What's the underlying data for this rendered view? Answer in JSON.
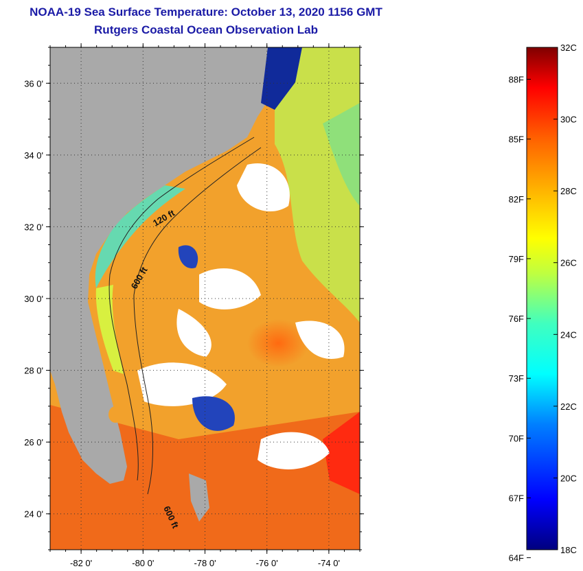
{
  "header": {
    "title": "NOAA-19 Sea Surface Temperature:  October 13, 2020 1156 GMT",
    "subtitle": "Rutgers Coastal Ocean Observation Lab"
  },
  "map": {
    "lat_ticks": [
      {
        "value": 36,
        "label": "36 0'"
      },
      {
        "value": 34,
        "label": "34 0'"
      },
      {
        "value": 32,
        "label": "32 0'"
      },
      {
        "value": 30,
        "label": "30 0'"
      },
      {
        "value": 28,
        "label": "28 0'"
      },
      {
        "value": 26,
        "label": "26 0'"
      },
      {
        "value": 24,
        "label": "24 0'"
      }
    ],
    "lon_ticks": [
      {
        "value": -82,
        "label": "-82 0'"
      },
      {
        "value": -80,
        "label": "-80 0'"
      },
      {
        "value": -78,
        "label": "-78 0'"
      },
      {
        "value": -76,
        "label": "-76 0'"
      },
      {
        "value": -74,
        "label": "-74 0'"
      }
    ],
    "lat_range": [
      23,
      37
    ],
    "lon_range": [
      -83,
      -73
    ],
    "contour_labels": [
      "120 ft",
      "600 ft",
      "600 ft"
    ],
    "colors": {
      "land": "#a9a9a9",
      "cloud": "#ffffff",
      "warm": "#f08a1e"
    }
  },
  "colorbar": {
    "celsius_labels": [
      "32C",
      "30C",
      "28C",
      "26C",
      "24C",
      "22C",
      "20C",
      "18C"
    ],
    "fahrenheit_labels": [
      "88F",
      "85F",
      "82F",
      "79F",
      "76F",
      "73F",
      "70F",
      "67F",
      "64F"
    ],
    "range_c": [
      18,
      32
    ]
  }
}
